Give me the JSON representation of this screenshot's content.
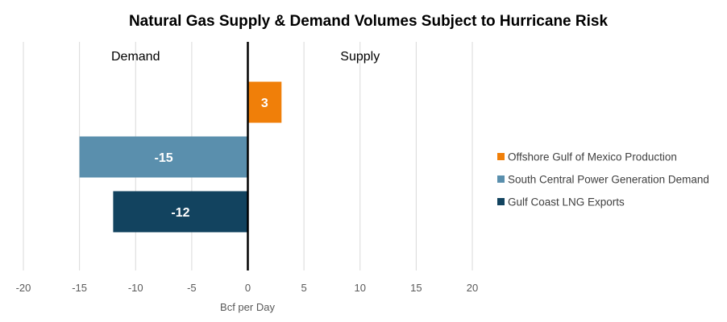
{
  "chart_data": {
    "type": "bar",
    "orientation": "horizontal",
    "title": "Natural  Gas Supply & Demand Volumes Subject to Hurricane Risk",
    "xlabel": "Bcf per Day",
    "xlim": [
      -20,
      20
    ],
    "xticks": [
      -20,
      -15,
      -10,
      -5,
      0,
      5,
      10,
      15,
      20
    ],
    "grid": true,
    "legend_position": "right",
    "region_labels": [
      "Demand",
      "Supply"
    ],
    "categories": [
      "Offshore Gulf of Mexico Production",
      "South Central Power Generation Demand",
      "Gulf Coast LNG Exports"
    ],
    "values": [
      3,
      -15,
      -12
    ],
    "data_labels": [
      "3",
      "-15",
      "-12"
    ],
    "colors": [
      "#f07f09",
      "#5a8fad",
      "#12435f"
    ]
  }
}
